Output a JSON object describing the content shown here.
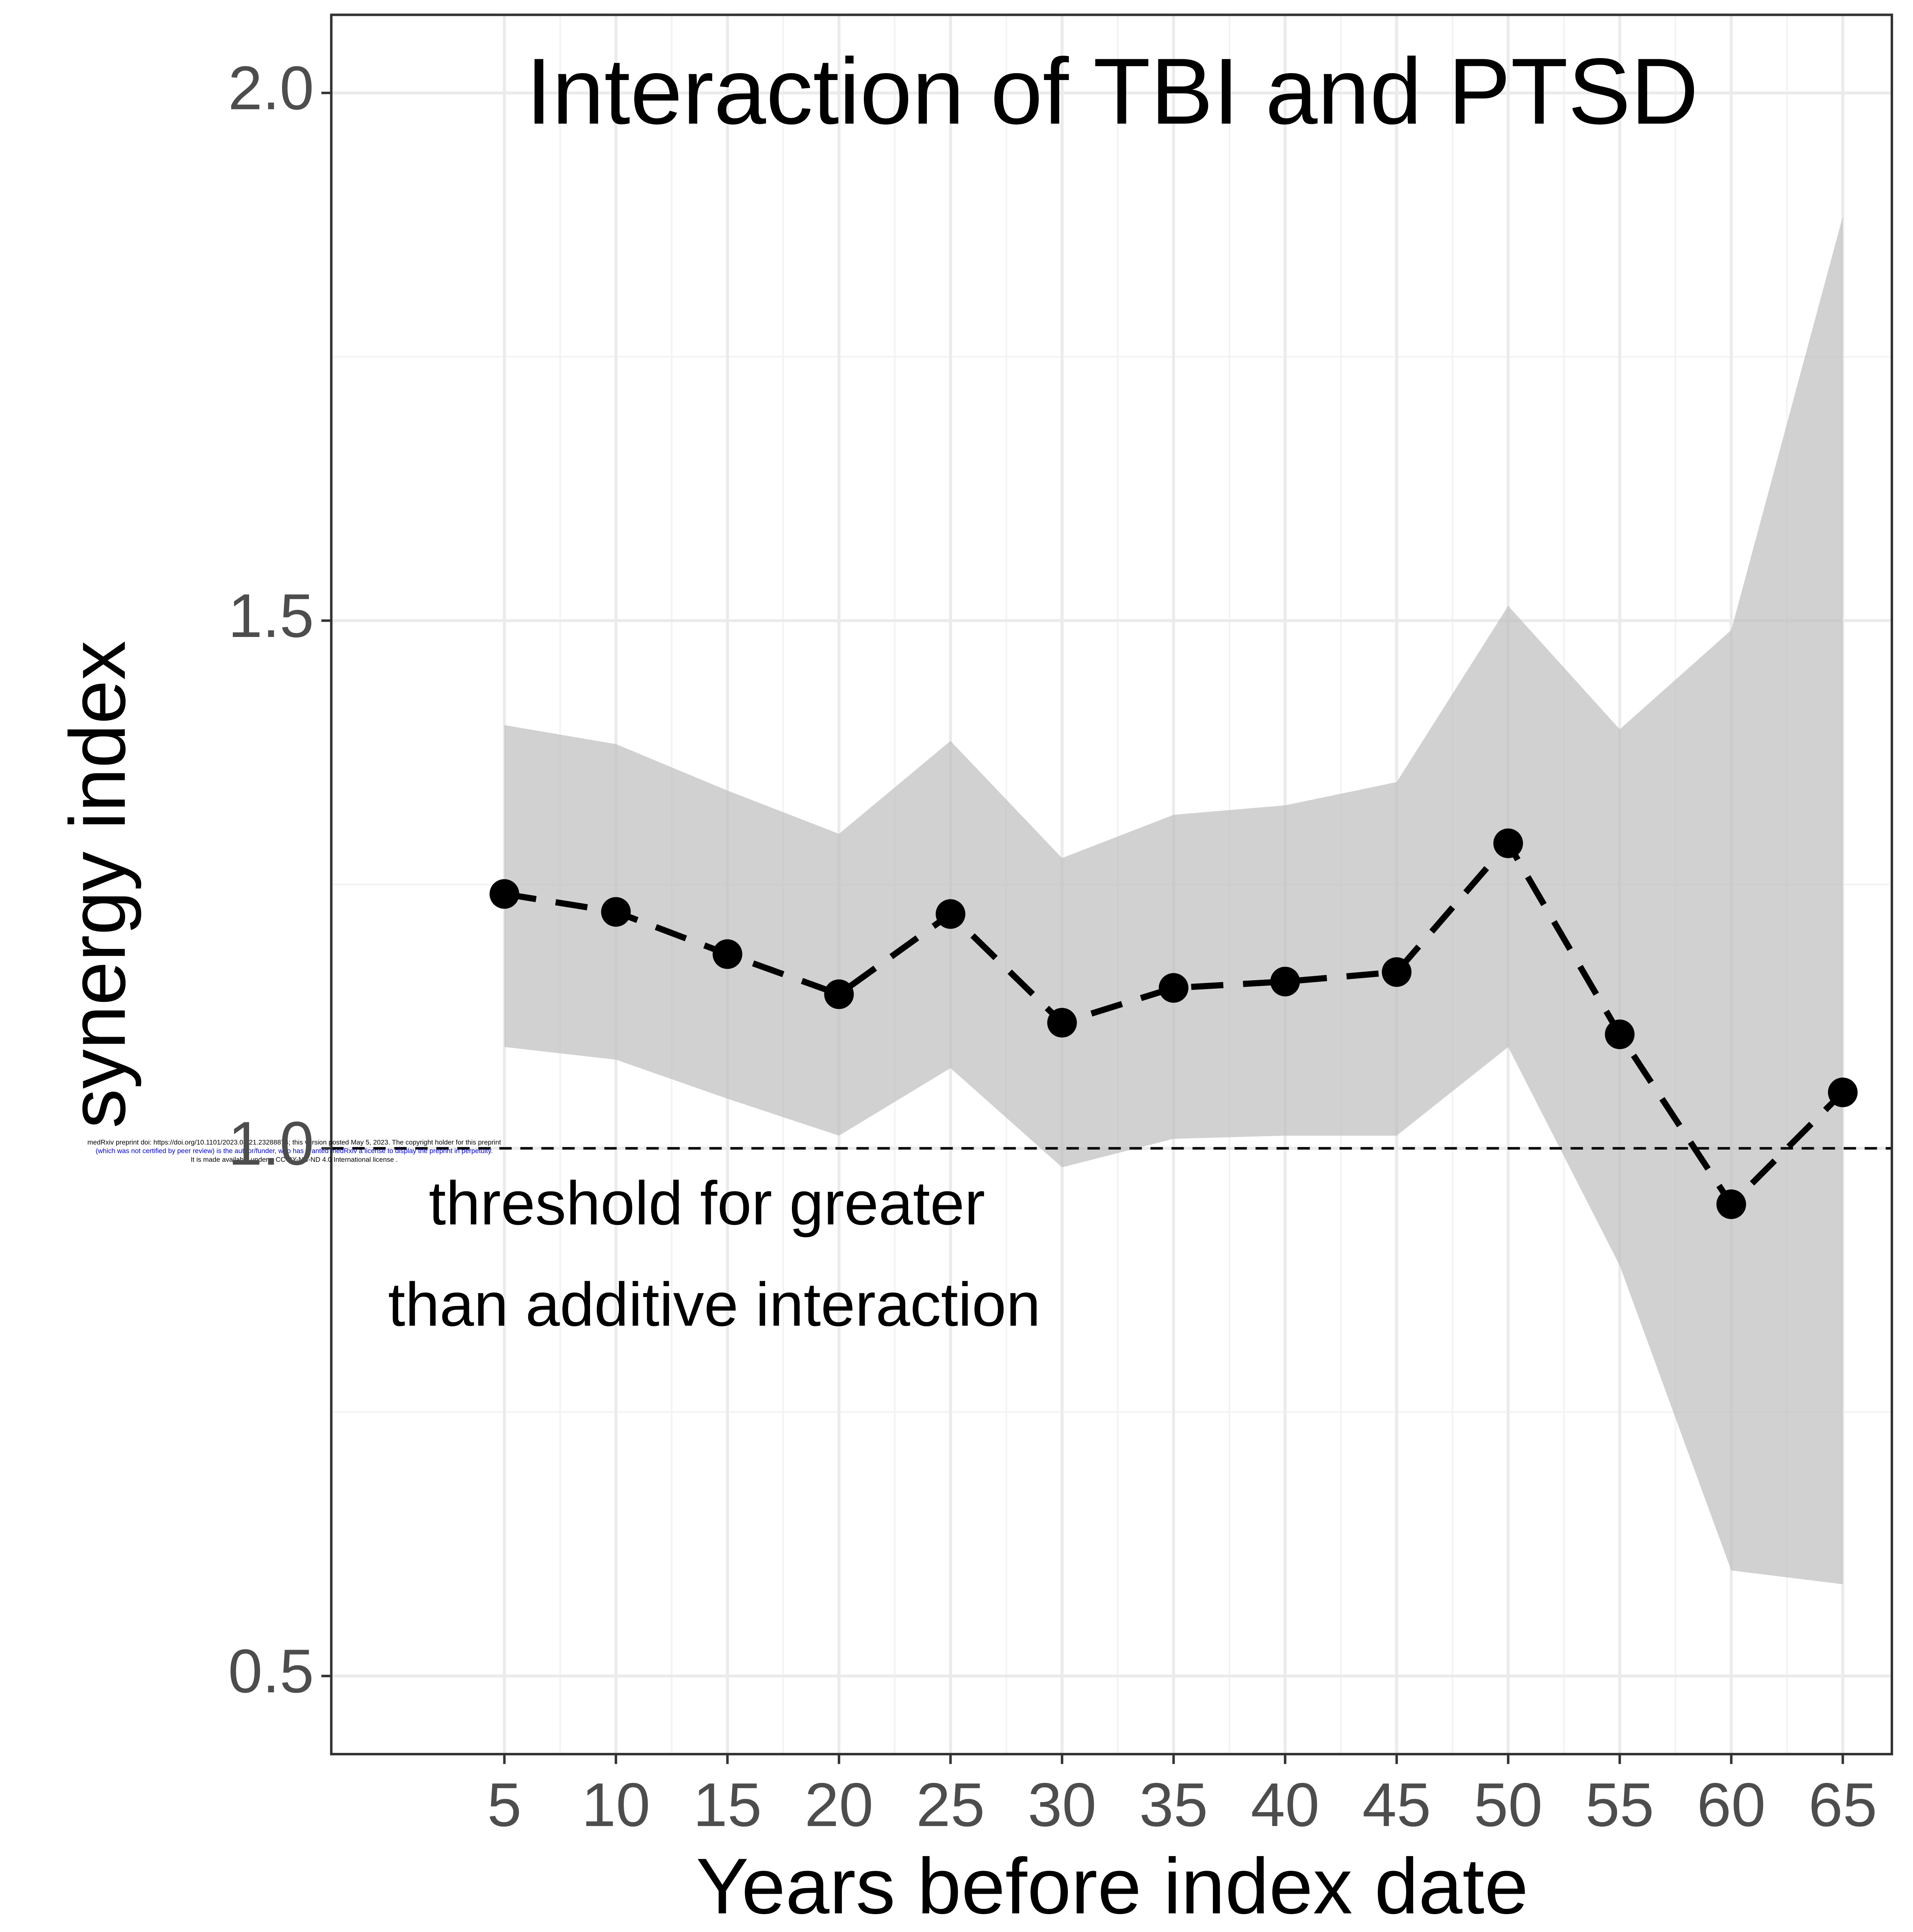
{
  "chart_data": {
    "type": "line",
    "title": "Interaction of TBI and PTSD",
    "x_label": "Years before index date",
    "y_label": "synergy index",
    "annotation": [
      "threshold for greater",
      "than additive interaction"
    ],
    "watermark": [
      "medRxiv preprint doi: https://doi.org/10.1101/2023.04.21.23288874; this version posted May 5, 2023. The copyright holder for this preprint",
      "(which was not certified by peer review) is the author/funder, who has granted medRxiv a license to display the preprint in perpetuity.",
      "It is made available under a CC-BY-NC-ND 4.0 International license ."
    ],
    "x": [
      5,
      10,
      15,
      20,
      25,
      30,
      35,
      40,
      45,
      50,
      55,
      60,
      65
    ],
    "series": [
      {
        "name": "synergy index",
        "color": "#000000",
        "values": [
          1.241,
          1.224,
          1.184,
          1.146,
          1.222,
          1.119,
          1.152,
          1.158,
          1.167,
          1.289,
          1.108,
          0.947,
          1.053
        ],
        "upper": [
          1.401,
          1.383,
          1.339,
          1.298,
          1.386,
          1.275,
          1.316,
          1.325,
          1.347,
          1.514,
          1.397,
          1.491,
          1.883
        ],
        "lower": [
          1.096,
          1.084,
          1.047,
          1.012,
          1.076,
          0.982,
          1.009,
          1.012,
          1.012,
          1.096,
          0.889,
          0.6,
          0.587
        ]
      }
    ],
    "band_color": "#bebebe",
    "hline": 1.0,
    "xlim": [
      -2.76,
      67.2
    ],
    "ylim": [
      0.426,
      2.074
    ],
    "xticks": [
      5,
      10,
      15,
      20,
      25,
      30,
      35,
      40,
      45,
      50,
      55,
      60,
      65
    ],
    "yticks": [
      {
        "value": 0.5,
        "label": "0.5"
      },
      {
        "value": 1.0,
        "label": "1.0"
      },
      {
        "value": 1.5,
        "label": "1.5"
      },
      {
        "value": 2.0,
        "label": "2.0"
      }
    ],
    "grid": true
  }
}
